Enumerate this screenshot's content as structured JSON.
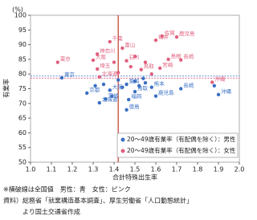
{
  "chart_data": {
    "type": "scatter",
    "y_unit": "(%)",
    "ylabel": "有業率",
    "xlabel": "合計特殊出生率",
    "xlim": [
      1.0,
      2.0
    ],
    "ylim": [
      50,
      100
    ],
    "xticks": [
      {
        "value": 1.0,
        "label": "1.0"
      },
      1.1,
      1.2,
      1.3,
      1.4,
      1.5,
      1.6,
      1.7,
      1.8,
      1.9,
      {
        "value": 2.0,
        "label": "2.0"
      }
    ],
    "yticks": [
      50,
      55,
      60,
      65,
      70,
      75,
      80,
      85,
      90,
      95,
      100
    ],
    "vline": {
      "value": 1.42,
      "color": "#c0392b"
    },
    "hlines": [
      {
        "value": 79.3,
        "color": "#3a6fc4"
      },
      {
        "value": 78.6,
        "color": "#e0607e"
      }
    ],
    "series": [
      {
        "name": "20～49歳有業率（有配偶を除く）：男性",
        "color": "#3a6fc4",
        "x": [
          1.15,
          1.27,
          1.33,
          1.31,
          1.35,
          1.38,
          1.39,
          1.36,
          1.44,
          1.46,
          1.47,
          1.46,
          1.5,
          1.52,
          1.55,
          1.58,
          1.6,
          1.72,
          1.88,
          1.9,
          1.42,
          1.5,
          1.54
        ],
        "values": [
          78.7,
          73.5,
          70.2,
          76.0,
          76.5,
          74.5,
          72.5,
          71.5,
          75.5,
          76.5,
          71.3,
          67.8,
          74.0,
          76.0,
          77.0,
          75.5,
          72.5,
          75.0,
          76.0,
          73.0,
          78.0,
          77.5,
          78.5
        ],
        "labels": [
          "東京",
          "京都",
          "北海道",
          null,
          null,
          "大阪",
          null,
          "宮城",
          null,
          "愛知",
          "福岡",
          "徳島",
          "鳥取",
          null,
          null,
          "熊本",
          "鹿児島",
          "長崎",
          null,
          "沖縄",
          null,
          null,
          null
        ]
      },
      {
        "name": "20～49歳有業率（有配偶を除く）：女性",
        "color": "#e0607e",
        "x": [
          1.13,
          1.3,
          1.32,
          1.33,
          1.32,
          1.38,
          1.44,
          1.46,
          1.5,
          1.53,
          1.6,
          1.63,
          1.7,
          1.66,
          1.72,
          1.62,
          1.58,
          1.87,
          1.4,
          1.48,
          1.55,
          1.42
        ],
        "values": [
          84.0,
          84.7,
          81.7,
          79.0,
          86.8,
          91.0,
          88.8,
          84.5,
          86.0,
          81.5,
          91.5,
          92.9,
          92.6,
          85.0,
          84.8,
          82.0,
          80.0,
          77.2,
          84.0,
          82.5,
          84.0,
          80.5
        ],
        "labels": [
          "東京",
          "大阪",
          "埼玉",
          "北海道",
          "神奈川",
          "千葉",
          "富山",
          "石川",
          null,
          "鳥取",
          "福井",
          "佐賀",
          "鹿児島",
          "島根",
          "長崎",
          "宮崎",
          null,
          "沖縄",
          null,
          null,
          null,
          null
        ]
      }
    ],
    "notes": [
      "※横破線は全国値　男性：青　女性：ピンク",
      "資料）総務省「就業構造基本調査」、厚生労働省「人口動態統計」",
      "　　　より国土交通省作成"
    ]
  }
}
